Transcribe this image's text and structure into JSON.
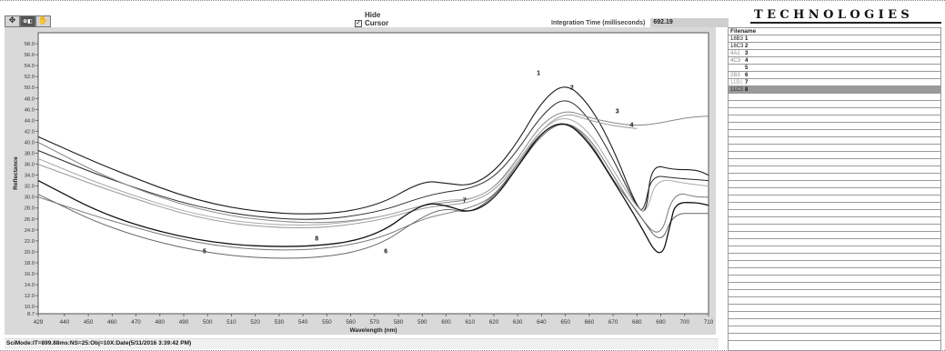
{
  "toolbar": {
    "tools": [
      {
        "name": "pan-tool",
        "glyph": "✥",
        "active": false
      },
      {
        "name": "zoom-tool",
        "glyph": "⊕◧",
        "active": true
      },
      {
        "name": "hand-tool",
        "glyph": "✋",
        "active": false
      }
    ]
  },
  "hide_cursor": {
    "label_line1": "Hide",
    "label_line2": "Cursor",
    "checked": true,
    "check_glyph": "✓"
  },
  "integration": {
    "label": "Integration Time (milliseconds)",
    "value": "692.19"
  },
  "brand": {
    "text": "TECHNOLOGIES"
  },
  "status": {
    "text": "SciMode:IT=899.88ms:NS=25:Obj=10X:Date(5/11/2016 3:39:42 PM)"
  },
  "filelist": {
    "header": "Filename",
    "rows": [
      {
        "filename": "18B3",
        "index": "1",
        "selected": false,
        "color": "#111111"
      },
      {
        "filename": "18C3",
        "index": "2",
        "selected": false,
        "color": "#111111"
      },
      {
        "filename": "4A1",
        "index": "3",
        "selected": false,
        "color": "#888888"
      },
      {
        "filename": "4C3",
        "index": "4",
        "selected": false,
        "color": "#888888"
      },
      {
        "filename": "",
        "index": "5",
        "selected": false,
        "color": "#888888"
      },
      {
        "filename": "2B3",
        "index": "6",
        "selected": false,
        "color": "#888888"
      },
      {
        "filename": "11B1",
        "index": "7",
        "selected": false,
        "color": "#aaaaaa"
      },
      {
        "filename": "11C3",
        "index": "8",
        "selected": true,
        "color": "#111111"
      }
    ],
    "empty_rows": 34
  },
  "chart_data": {
    "type": "line",
    "title": "",
    "xlabel": "Wavelength (nm)",
    "ylabel": "Reflectance",
    "xlim": [
      429,
      710
    ],
    "ylim": [
      8.7,
      60
    ],
    "x_ticks": [
      429,
      440,
      450,
      460,
      470,
      480,
      490,
      500,
      510,
      520,
      530,
      540,
      550,
      560,
      570,
      580,
      590,
      600,
      610,
      620,
      630,
      640,
      650,
      660,
      670,
      680,
      690,
      700,
      710
    ],
    "y_ticks": [
      8.7,
      10.0,
      12.0,
      14.0,
      16.0,
      18.0,
      20.0,
      22.0,
      24.0,
      26.0,
      28.0,
      30.0,
      32.0,
      34.0,
      36.0,
      38.0,
      40.0,
      42.0,
      44.0,
      46.0,
      48.0,
      50.0,
      52.0,
      54.0,
      56.0,
      58.0
    ],
    "grid": false,
    "background": "#d9d9d9",
    "series": [
      {
        "name": "1",
        "color": "#1a1a1a",
        "width": 1.1,
        "points": [
          [
            429,
            41
          ],
          [
            460,
            35
          ],
          [
            500,
            28.5
          ],
          [
            540,
            26.5
          ],
          [
            570,
            28
          ],
          [
            590,
            33
          ],
          [
            600,
            32.5
          ],
          [
            610,
            32
          ],
          [
            620,
            34.5
          ],
          [
            630,
            40
          ],
          [
            640,
            47.5
          ],
          [
            650,
            51
          ],
          [
            660,
            47
          ],
          [
            670,
            39
          ],
          [
            680,
            28
          ],
          [
            684,
            27
          ],
          [
            686,
            36
          ],
          [
            695,
            35
          ],
          [
            705,
            35
          ],
          [
            710,
            34
          ]
        ],
        "label_at": [
          638,
          52.3
        ]
      },
      {
        "name": "2",
        "color": "#2a2a2a",
        "width": 1,
        "points": [
          [
            429,
            38.5
          ],
          [
            460,
            33
          ],
          [
            500,
            27.5
          ],
          [
            540,
            25.5
          ],
          [
            570,
            27
          ],
          [
            590,
            30
          ],
          [
            600,
            31
          ],
          [
            610,
            31.5
          ],
          [
            620,
            33.5
          ],
          [
            630,
            38.5
          ],
          [
            640,
            45
          ],
          [
            650,
            48.5
          ],
          [
            660,
            44.5
          ],
          [
            670,
            37
          ],
          [
            680,
            28
          ],
          [
            683,
            27.5
          ],
          [
            686,
            34
          ],
          [
            695,
            33.5
          ],
          [
            710,
            33
          ]
        ],
        "label_at": [
          652,
          49.6
        ]
      },
      {
        "name": "3",
        "color": "#888888",
        "width": 1,
        "points": [
          [
            429,
            40
          ],
          [
            460,
            33
          ],
          [
            500,
            27
          ],
          [
            540,
            25
          ],
          [
            570,
            26
          ],
          [
            590,
            28.5
          ],
          [
            600,
            29
          ],
          [
            610,
            29.5
          ],
          [
            620,
            31.5
          ],
          [
            630,
            37
          ],
          [
            640,
            43.5
          ],
          [
            650,
            46
          ],
          [
            660,
            44.5
          ],
          [
            670,
            43.5
          ],
          [
            680,
            43
          ],
          [
            690,
            43.5
          ],
          [
            700,
            44.5
          ],
          [
            710,
            44.8
          ]
        ],
        "label_at": [
          671,
          45.3
        ]
      },
      {
        "name": "4",
        "color": "#999999",
        "width": 1,
        "points": [
          [
            429,
            36
          ],
          [
            460,
            31
          ],
          [
            500,
            25.5
          ],
          [
            540,
            24
          ],
          [
            570,
            25.5
          ],
          [
            590,
            28
          ],
          [
            600,
            28.5
          ],
          [
            610,
            29
          ],
          [
            620,
            31
          ],
          [
            630,
            36
          ],
          [
            640,
            42.5
          ],
          [
            650,
            45.5
          ],
          [
            660,
            44
          ],
          [
            670,
            43
          ],
          [
            680,
            42.5
          ]
        ],
        "label_at": [
          677,
          42.8
        ]
      },
      {
        "name": "5",
        "color": "#777777",
        "width": 1,
        "points": [
          [
            429,
            30
          ],
          [
            460,
            25.5
          ],
          [
            500,
            21
          ],
          [
            540,
            20
          ],
          [
            570,
            22
          ],
          [
            590,
            26
          ],
          [
            600,
            27
          ],
          [
            610,
            28
          ],
          [
            620,
            30
          ],
          [
            630,
            36
          ],
          [
            640,
            42
          ],
          [
            650,
            44
          ],
          [
            660,
            41
          ],
          [
            670,
            34
          ],
          [
            680,
            27
          ],
          [
            690,
            22
          ],
          [
            695,
            31
          ],
          [
            705,
            30
          ],
          [
            710,
            30
          ]
        ],
        "label_at": [
          498,
          19.7
        ]
      },
      {
        "name": "6",
        "color": "#666666",
        "width": 1,
        "points": [
          [
            429,
            30.5
          ],
          [
            460,
            24
          ],
          [
            500,
            19.5
          ],
          [
            540,
            18.5
          ],
          [
            570,
            20.5
          ],
          [
            590,
            26.5
          ],
          [
            600,
            28
          ],
          [
            610,
            27
          ],
          [
            620,
            30
          ],
          [
            630,
            35.5
          ],
          [
            640,
            41.5
          ],
          [
            650,
            44
          ],
          [
            660,
            40.5
          ],
          [
            670,
            33
          ],
          [
            680,
            27.5
          ],
          [
            690,
            21
          ],
          [
            695,
            27
          ],
          [
            705,
            27
          ],
          [
            710,
            27
          ]
        ],
        "label_at": [
          574,
          19.7
        ]
      },
      {
        "name": "7",
        "color": "#aaaaaa",
        "width": 1,
        "points": [
          [
            429,
            37
          ],
          [
            460,
            31.5
          ],
          [
            500,
            26
          ],
          [
            540,
            24.5
          ],
          [
            570,
            26
          ],
          [
            590,
            28.5
          ],
          [
            600,
            29.5
          ],
          [
            610,
            29.5
          ],
          [
            620,
            31.5
          ],
          [
            630,
            36.5
          ],
          [
            640,
            42.5
          ],
          [
            650,
            45
          ],
          [
            660,
            42
          ],
          [
            670,
            35
          ],
          [
            680,
            28
          ],
          [
            684,
            27
          ],
          [
            688,
            33.5
          ],
          [
            700,
            32.5
          ],
          [
            710,
            32
          ]
        ],
        "label_at": [
          607,
          29
        ]
      },
      {
        "name": "8",
        "color": "#111111",
        "width": 1.3,
        "points": [
          [
            429,
            33
          ],
          [
            460,
            26
          ],
          [
            500,
            21.5
          ],
          [
            540,
            20.7
          ],
          [
            570,
            22.5
          ],
          [
            590,
            29
          ],
          [
            600,
            28.5
          ],
          [
            610,
            27
          ],
          [
            620,
            29.5
          ],
          [
            630,
            35.5
          ],
          [
            640,
            42
          ],
          [
            650,
            44
          ],
          [
            660,
            40
          ],
          [
            670,
            33
          ],
          [
            680,
            26
          ],
          [
            690,
            18
          ],
          [
            694,
            25
          ],
          [
            696,
            29
          ],
          [
            705,
            29
          ],
          [
            710,
            28.5
          ]
        ],
        "label_at": [
          545,
          22.1
        ]
      }
    ]
  }
}
